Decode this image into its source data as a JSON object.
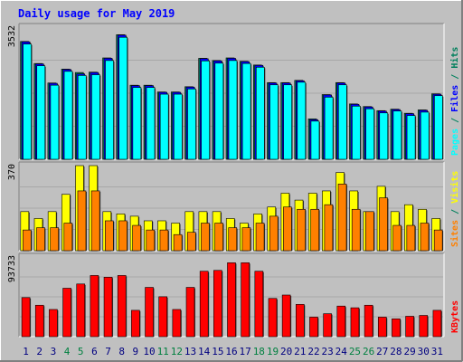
{
  "colors": {
    "background": "#c0c0c0",
    "panel": "#c0c0c0",
    "grid": "#a8a8a8",
    "hits": "#00805c",
    "files": "#0000ff",
    "pages": "#00ffff",
    "visits": "#ffff00",
    "sites": "#ff8000",
    "kbytes": "#ff0000",
    "title": "#0000ff",
    "weekend_label": "#008040",
    "weekday_label": "#000080"
  },
  "chart_data": {
    "type": "bar",
    "title": "Daily usage for May 2019",
    "categories": [
      "1",
      "2",
      "3",
      "4",
      "5",
      "6",
      "7",
      "8",
      "9",
      "10",
      "11",
      "12",
      "13",
      "14",
      "15",
      "16",
      "17",
      "18",
      "19",
      "20",
      "21",
      "22",
      "23",
      "24",
      "25",
      "26",
      "27",
      "28",
      "29",
      "30",
      "31"
    ],
    "weekend_days": [
      "4",
      "5",
      "11",
      "12",
      "18",
      "19",
      "25",
      "26"
    ],
    "panels": [
      {
        "id": "top",
        "ymax_label": "3532",
        "ymax": 3532,
        "legend": [
          {
            "text": "Pages",
            "color_key": "pages"
          },
          {
            "text": " / ",
            "color_key": "hits"
          },
          {
            "text": "Files",
            "color_key": "files"
          },
          {
            "text": " / ",
            "color_key": "hits"
          },
          {
            "text": "Hits",
            "color_key": "hits"
          }
        ],
        "series": [
          {
            "name": "Hits",
            "color_key": "hits",
            "values": [
              3150,
              2560,
              2040,
              2410,
              2320,
              2330,
              2710,
              3330,
              1980,
              1980,
              1800,
              1800,
              1940,
              2700,
              2640,
              2710,
              2620,
              2520,
              2050,
              2050,
              2110,
              1080,
              1730,
              2050,
              1480,
              1410,
              1300,
              1340,
              1230,
              1320,
              1750
            ]
          },
          {
            "name": "Files",
            "color_key": "files",
            "values": [
              3140,
              2550,
              2030,
              2400,
              2280,
              2320,
              2700,
              3320,
              1970,
              1970,
              1790,
              1790,
              1930,
              2690,
              2630,
              2700,
              2610,
              2510,
              2040,
              2040,
              2100,
              1060,
              1720,
              2040,
              1470,
              1400,
              1290,
              1330,
              1220,
              1310,
              1740
            ]
          },
          {
            "name": "Pages",
            "color_key": "pages",
            "values": [
              3080,
              2500,
              1980,
              2350,
              2240,
              2260,
              2640,
              3260,
              1920,
              1920,
              1740,
              1740,
              1880,
              2630,
              2570,
              2640,
              2560,
              2460,
              1990,
              1990,
              2060,
              1020,
              1660,
              1990,
              1420,
              1350,
              1240,
              1290,
              1170,
              1260,
              1700
            ]
          }
        ]
      },
      {
        "id": "middle",
        "ymax_label": "370",
        "ymax": 370,
        "legend": [
          {
            "text": "Sites",
            "color_key": "sites"
          },
          {
            "text": " / ",
            "color_key": "hits"
          },
          {
            "text": "Visits",
            "color_key": "visits"
          }
        ],
        "series": [
          {
            "name": "Visits",
            "color_key": "visits",
            "values": [
              170,
              140,
              170,
              245,
              370,
              370,
              170,
              160,
              150,
              130,
              130,
              120,
              170,
              170,
              170,
              140,
              120,
              160,
              190,
              250,
              220,
              250,
              260,
              340,
              260,
              170,
              280,
              170,
              200,
              180,
              140
            ]
          },
          {
            "name": "Sites",
            "color_key": "sites",
            "values": [
              90,
              100,
              100,
              120,
              260,
              260,
              130,
              130,
              110,
              90,
              90,
              70,
              80,
              120,
              120,
              100,
              100,
              120,
              150,
              190,
              180,
              180,
              200,
              290,
              180,
              170,
              230,
              110,
              110,
              120,
              90
            ]
          }
        ]
      },
      {
        "id": "bottom",
        "ymax_label": "93733",
        "ymax": 93733,
        "legend": [
          {
            "text": "KBytes",
            "color_key": "kbytes"
          }
        ],
        "series": [
          {
            "name": "KBytes",
            "color_key": "kbytes",
            "values": [
              46000,
              37000,
              32000,
              57000,
              62000,
              72000,
              70000,
              72000,
              31000,
              58000,
              47000,
              32000,
              58000,
              77000,
              78000,
              87000,
              87000,
              77000,
              45000,
              49000,
              38000,
              23000,
              27000,
              36000,
              34000,
              37000,
              23000,
              21000,
              24000,
              25000,
              31000
            ]
          }
        ]
      }
    ]
  }
}
